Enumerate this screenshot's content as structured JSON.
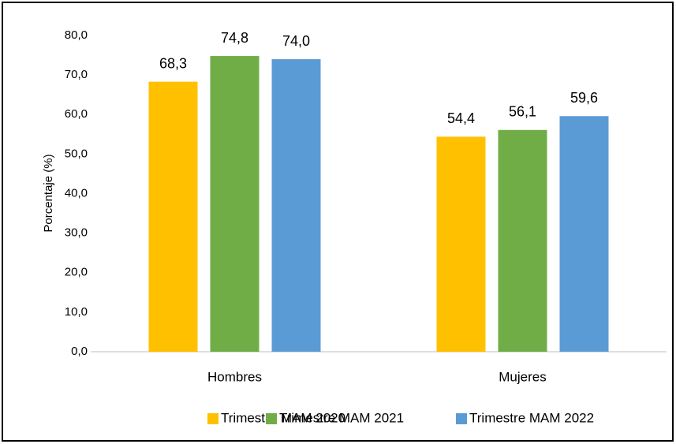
{
  "chart_data": {
    "type": "bar",
    "y_label": "Porcentaje (%)",
    "categories": [
      "Hombres",
      "Mujeres"
    ],
    "series": [
      {
        "name": "Trimestre MAM 2020",
        "color": "#FFC000",
        "values": [
          68.3,
          54.4
        ],
        "value_labels": [
          "68,3",
          "54,4"
        ]
      },
      {
        "name": "Trimestre MAM 2021",
        "color": "#70AD47",
        "values": [
          74.8,
          56.1
        ],
        "value_labels": [
          "74,8",
          "56,1"
        ]
      },
      {
        "name": "Trimestre MAM 2022",
        "color": "#5B9BD5",
        "values": [
          74.0,
          59.6
        ],
        "value_labels": [
          "74,0",
          "59,6"
        ]
      }
    ],
    "ylim": [
      0,
      80
    ],
    "yticks": [
      {
        "value": 0,
        "label": "0,0"
      },
      {
        "value": 10,
        "label": "10,0"
      },
      {
        "value": 20,
        "label": "20,0"
      },
      {
        "value": 30,
        "label": "30,0"
      },
      {
        "value": 40,
        "label": "40,0"
      },
      {
        "value": 50,
        "label": "50,0"
      },
      {
        "value": 60,
        "label": "60,0"
      },
      {
        "value": 70,
        "label": "70,0"
      },
      {
        "value": 80,
        "label": "80,0"
      }
    ],
    "grid": false,
    "legend": "bottom"
  }
}
